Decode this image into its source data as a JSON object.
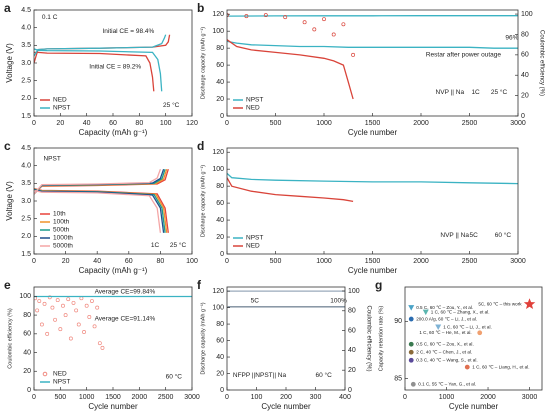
{
  "chart_data": [
    {
      "type": "line",
      "label": "a",
      "xlabel": "Capacity (mAh g⁻¹)",
      "ylabel": "Voltage (V)",
      "xlim": [
        0,
        120
      ],
      "xticks": [
        0,
        20,
        40,
        60,
        80,
        100,
        120
      ],
      "ylim": [
        1.5,
        4.5
      ],
      "yticks": [
        1.5,
        {
          "value": 2,
          "label": "2.0"
        },
        2.5,
        {
          "value": 3,
          "label": "3.0"
        },
        3.5,
        {
          "value": 4,
          "label": "4.0"
        },
        4.5
      ],
      "legend": "lower left",
      "series": [
        {
          "name": "NED",
          "color": "#d9443a",
          "mode": "line",
          "x": [
            0,
            3,
            10,
            50,
            90,
            100,
            102,
            103
          ],
          "values": [
            3.0,
            3.38,
            3.4,
            3.42,
            3.45,
            3.5,
            3.6,
            3.8
          ]
        },
        {
          "color": "#d9443a",
          "mode": "line",
          "x": [
            0,
            3,
            10,
            50,
            85,
            88,
            90,
            91
          ],
          "values": [
            3.3,
            3.3,
            3.28,
            3.27,
            3.2,
            3.0,
            2.6,
            2.2
          ]
        },
        {
          "name": "NPST",
          "color": "#3bb3c3",
          "mode": "line",
          "x": [
            0,
            3,
            10,
            50,
            90,
            97,
            99,
            100
          ],
          "values": [
            3.2,
            3.38,
            3.4,
            3.42,
            3.45,
            3.55,
            3.7,
            3.8
          ]
        },
        {
          "color": "#3bb3c3",
          "mode": "line",
          "x": [
            0,
            3,
            10,
            50,
            90,
            94,
            96,
            97
          ],
          "values": [
            3.4,
            3.36,
            3.35,
            3.34,
            3.3,
            3.1,
            2.7,
            2.2
          ]
        }
      ],
      "annotations": [
        {
          "text": "0.1 C",
          "x": 6,
          "y": 4.3
        },
        {
          "text": "Initial CE = 98.4%",
          "x": 52,
          "y": 3.9,
          "color": "#3bb3c3"
        },
        {
          "text": "Initial CE = 89.2%",
          "x": 42,
          "y": 2.9,
          "color": "#d9443a"
        },
        {
          "text": "25 °C",
          "x": 98,
          "y": 1.8
        }
      ]
    },
    {
      "type": "line",
      "label": "b",
      "xlabel": "Cycle number",
      "ylabel": "Discharge capacity (mAh g⁻¹)",
      "y2label": "Coulombic efficiency (%)",
      "xlim": [
        0,
        3000
      ],
      "xticks": [
        0,
        500,
        1000,
        1500,
        2000,
        2500,
        3000
      ],
      "ylim": [
        0,
        125
      ],
      "yticks": [
        0,
        20,
        40,
        60,
        80,
        100,
        120
      ],
      "y2lim": [
        0,
        104
      ],
      "y2ticks": [
        0,
        20,
        40,
        60,
        80,
        100
      ],
      "legend": "lower left",
      "series": [
        {
          "name": "NPST",
          "color": "#3bb3c3",
          "mode": "line",
          "x": [
            0,
            100,
            250,
            500,
            750,
            1000,
            1250,
            1500,
            1750,
            2000,
            2250,
            2500,
            2750,
            3000
          ],
          "values": [
            88,
            86,
            84,
            83,
            82,
            82,
            81,
            81,
            81,
            81,
            81,
            81,
            80,
            80
          ]
        },
        {
          "name": "NED",
          "color": "#d9443a",
          "mode": "line",
          "x": [
            0,
            100,
            250,
            500,
            750,
            1000,
            1100,
            1200,
            1250,
            1300
          ],
          "values": [
            90,
            82,
            78,
            75,
            72,
            68,
            65,
            60,
            40,
            20
          ]
        },
        {
          "color": "#3bb3c3",
          "mode": "line",
          "axis": "y2",
          "x": [
            0,
            500,
            1000,
            1500,
            2000,
            2500,
            3000
          ],
          "values": [
            98,
            98.2,
            98.3,
            98.3,
            98.4,
            98.4,
            98.4
          ]
        },
        {
          "color": "#d9443a",
          "mode": "markers",
          "axis": "y2",
          "x": [
            0,
            200,
            400,
            600,
            800,
            900,
            1000,
            1100,
            1200,
            1300
          ],
          "values": [
            99,
            98,
            99,
            97,
            92,
            85,
            95,
            80,
            90,
            60
          ]
        }
      ],
      "annotations": [
        {
          "text": "96%",
          "x": 2870,
          "y": 92
        },
        {
          "text": "Restar after power outage",
          "x": 2050,
          "y": 72
        },
        {
          "text": "NVP || Na",
          "x": 2150,
          "y": 28
        },
        {
          "text": "1C",
          "x": 2520,
          "y": 28
        },
        {
          "text": "25 °C",
          "x": 2720,
          "y": 28
        }
      ]
    },
    {
      "type": "line",
      "label": "c",
      "xlabel": "Capacity (mAh g⁻¹)",
      "ylabel": "Voltage (V)",
      "xlim": [
        0,
        100
      ],
      "xticks": [
        0,
        20,
        40,
        60,
        80,
        100
      ],
      "ylim": [
        1.5,
        4.5
      ],
      "yticks": [
        1.5,
        {
          "value": 2,
          "label": "2.0"
        },
        2.5,
        {
          "value": 3,
          "label": "3.0"
        },
        3.5,
        {
          "value": 4,
          "label": "4.0"
        },
        4.5
      ],
      "legend": "lower left",
      "series": [
        {
          "name": "10th",
          "color": "#e8433a",
          "mode": "line",
          "x": [
            0,
            5,
            40,
            78,
            83,
            85,
            null,
            0,
            5,
            40,
            78,
            83,
            85
          ],
          "values": [
            3.2,
            3.42,
            3.44,
            3.48,
            3.6,
            3.9,
            null,
            3.35,
            3.3,
            3.28,
            3.2,
            2.8,
            2.1
          ]
        },
        {
          "name": "100th",
          "color": "#f0922a",
          "mode": "line",
          "x": [
            0,
            5,
            40,
            77,
            82,
            84,
            null,
            0,
            5,
            40,
            77,
            82,
            84
          ],
          "values": [
            3.2,
            3.43,
            3.45,
            3.49,
            3.62,
            3.9,
            null,
            3.34,
            3.29,
            3.27,
            3.19,
            2.8,
            2.1
          ]
        },
        {
          "name": "500th",
          "color": "#1a9c8c",
          "mode": "line",
          "x": [
            0,
            5,
            40,
            76,
            81,
            83,
            null,
            0,
            5,
            40,
            76,
            81,
            83
          ],
          "values": [
            3.2,
            3.44,
            3.46,
            3.5,
            3.63,
            3.9,
            null,
            3.33,
            3.28,
            3.26,
            3.18,
            2.8,
            2.1
          ]
        },
        {
          "name": "1000th",
          "color": "#1f4e8c",
          "mode": "line",
          "x": [
            0,
            5,
            40,
            75,
            80,
            82,
            null,
            0,
            5,
            40,
            75,
            80,
            82
          ],
          "values": [
            3.2,
            3.45,
            3.47,
            3.51,
            3.64,
            3.9,
            null,
            3.32,
            3.27,
            3.25,
            3.17,
            2.8,
            2.1
          ]
        },
        {
          "name": "5000th",
          "color": "#f4a6a6",
          "mode": "line",
          "x": [
            0,
            5,
            40,
            73,
            78,
            80,
            null,
            0,
            5,
            40,
            73,
            78,
            80
          ],
          "values": [
            3.2,
            3.46,
            3.48,
            3.52,
            3.65,
            3.9,
            null,
            3.3,
            3.25,
            3.23,
            3.15,
            2.8,
            2.1
          ]
        }
      ],
      "annotations": [
        {
          "text": "NPST",
          "x": 6,
          "y": 4.2
        },
        {
          "text": "1C",
          "x": 74,
          "y": 1.75
        },
        {
          "text": "25 °C",
          "x": 86,
          "y": 1.75
        }
      ]
    },
    {
      "type": "line",
      "label": "d",
      "xlabel": "Cycle number",
      "ylabel": "Discharge capacity (mAh g⁻¹)",
      "xlim": [
        0,
        3000
      ],
      "xticks": [
        0,
        500,
        1000,
        1500,
        2000,
        2500,
        3000
      ],
      "ylim": [
        0,
        125
      ],
      "yticks": [
        0,
        20,
        40,
        60,
        80,
        100,
        120
      ],
      "legend": "lower left",
      "series": [
        {
          "name": "NPST",
          "color": "#3bb3c3",
          "mode": "line",
          "x": [
            0,
            50,
            250,
            500,
            1000,
            1500,
            2000,
            2500,
            3000
          ],
          "values": [
            95,
            90,
            88,
            87,
            86,
            85,
            85,
            84,
            83
          ]
        },
        {
          "name": "NED",
          "color": "#d9443a",
          "mode": "line",
          "x": [
            0,
            50,
            250,
            500,
            750,
            1000,
            1200,
            1300
          ],
          "values": [
            90,
            80,
            74,
            70,
            68,
            66,
            64,
            62
          ]
        }
      ],
      "annotations": [
        {
          "text": "NVP || Na",
          "x": 2200,
          "y": 22
        },
        {
          "text": "5C",
          "x": 2500,
          "y": 22
        },
        {
          "text": "60 °C",
          "x": 2760,
          "y": 22,
          "color": "#d9443a"
        }
      ]
    },
    {
      "type": "line",
      "label": "e",
      "xlabel": "Cycle number",
      "ylabel": "Coulombic efficiency (%)",
      "xlim": [
        0,
        3000
      ],
      "xticks": [
        0,
        500,
        1000,
        1500,
        2000,
        2500,
        3000
      ],
      "ylim": [
        0,
        110
      ],
      "yticks": [
        0,
        20,
        40,
        60,
        80,
        100
      ],
      "legend": "lower left",
      "series": [
        {
          "name": "NED",
          "color": "#f08a80",
          "mode": "markers",
          "x": [
            20,
            60,
            100,
            150,
            200,
            250,
            300,
            350,
            400,
            450,
            500,
            550,
            600,
            650,
            700,
            750,
            800,
            850,
            900,
            950,
            1000,
            1050,
            1100,
            1150,
            1200,
            1250,
            1300
          ],
          "values": [
            98,
            85,
            95,
            70,
            92,
            60,
            99,
            88,
            75,
            96,
            65,
            90,
            80,
            97,
            55,
            93,
            85,
            70,
            98,
            62,
            90,
            78,
            95,
            68,
            88,
            50,
            45
          ]
        },
        {
          "name": "NPST",
          "color": "#3bb3c3",
          "mode": "line",
          "x": [
            0,
            1000,
            2000,
            3000
          ],
          "values": [
            99.84,
            99.84,
            99.84,
            99.84
          ]
        }
      ],
      "annotations": [
        {
          "text": "Average CE=99.84%",
          "x": 1150,
          "y": 105,
          "color": "#3bb3c3"
        },
        {
          "text": "Average CE=91.14%",
          "x": 1150,
          "y": 76,
          "color": "#d9443a"
        },
        {
          "text": "60 °C",
          "x": 2500,
          "y": 14,
          "color": "#d9443a"
        }
      ]
    },
    {
      "type": "line",
      "label": "f",
      "xlabel": "Cycle number",
      "ylabel": "Discharge capacity (mAh g⁻¹)",
      "y2label": "Coulombic efficiency (%)",
      "xlim": [
        0,
        400
      ],
      "xticks": [
        0,
        100,
        200,
        300,
        400
      ],
      "ylim": [
        0,
        125
      ],
      "yticks": [
        0,
        20,
        40,
        60,
        80,
        100,
        120
      ],
      "y2lim": [
        0,
        104
      ],
      "y2ticks": [
        0,
        20,
        40,
        60,
        80,
        100
      ],
      "series": [
        {
          "color": "#7a8a9a",
          "mode": "line",
          "x": [
            0,
            5,
            100,
            200,
            300,
            400
          ],
          "values": [
            100,
            101,
            101,
            101,
            101,
            101
          ]
        },
        {
          "color": "#9aaabb",
          "mode": "line",
          "axis": "y2",
          "x": [
            0,
            100,
            200,
            300,
            400
          ],
          "values": [
            99.9,
            99.9,
            99.9,
            99.9,
            99.9
          ]
        }
      ],
      "annotations": [
        {
          "text": "5C",
          "x": 80,
          "y": 108
        },
        {
          "text": "100%",
          "x": 350,
          "y": 108
        },
        {
          "text": "NFPP ||NPST|| Na",
          "x": 20,
          "y": 18
        },
        {
          "text": "60 °C",
          "x": 300,
          "y": 18,
          "color": "#d9443a"
        }
      ]
    },
    {
      "type": "scatter",
      "label": "g",
      "xlabel": "Cycle number",
      "ylabel": "Capacity retention rate (%)",
      "xlim": [
        0,
        3300
      ],
      "xticks": [
        0,
        1000,
        2000,
        3000
      ],
      "ylim": [
        84,
        93
      ],
      "yticks": [
        85,
        90
      ],
      "x": [
        150,
        500,
        150,
        800,
        1800,
        150,
        150,
        150,
        1500,
        200,
        3000
      ],
      "values": [
        91.2,
        90.8,
        90.2,
        89.5,
        89.0,
        88.0,
        87.3,
        86.6,
        86.0,
        84.5,
        91.5
      ],
      "labels": [
        "0.5 C, 60 ℃ – Zou, Y., et al.",
        "1 C, 60 ℃ – Zhang, X., et al.",
        "200.0 A/g, 60 ℃ – Li, J., et al.",
        "1 C, 60 ℃ – Li, J., et al.",
        "1 C, 60 ℃ – He, M., et al.",
        "0.5 C, 60 ℃ – Zou, X., et al.",
        "2 C, 40 ℃ – Chen, J., et al.",
        "0.3 C, 40 ℃ – Wang, S., et al.",
        "1 C, 60 ℃ – Liang, H., et al.",
        "0.1 C, 55 ℃ – Yan, G., et al.",
        "5C, 60 ℃ – this work"
      ],
      "colors": [
        "#4aa3c7",
        "#5bb6b0",
        "#2b6cb0",
        "#7fb3d5",
        "#f0a070",
        "#3a7a50",
        "#8a6a3a",
        "#5a4a9a",
        "#e07050",
        "#909090",
        "#e0403a"
      ],
      "markers": [
        "triangle",
        "triangle",
        "circle",
        "triangle",
        "circle",
        "circle",
        "circle",
        "circle",
        "circle",
        "circle",
        "star"
      ]
    }
  ]
}
